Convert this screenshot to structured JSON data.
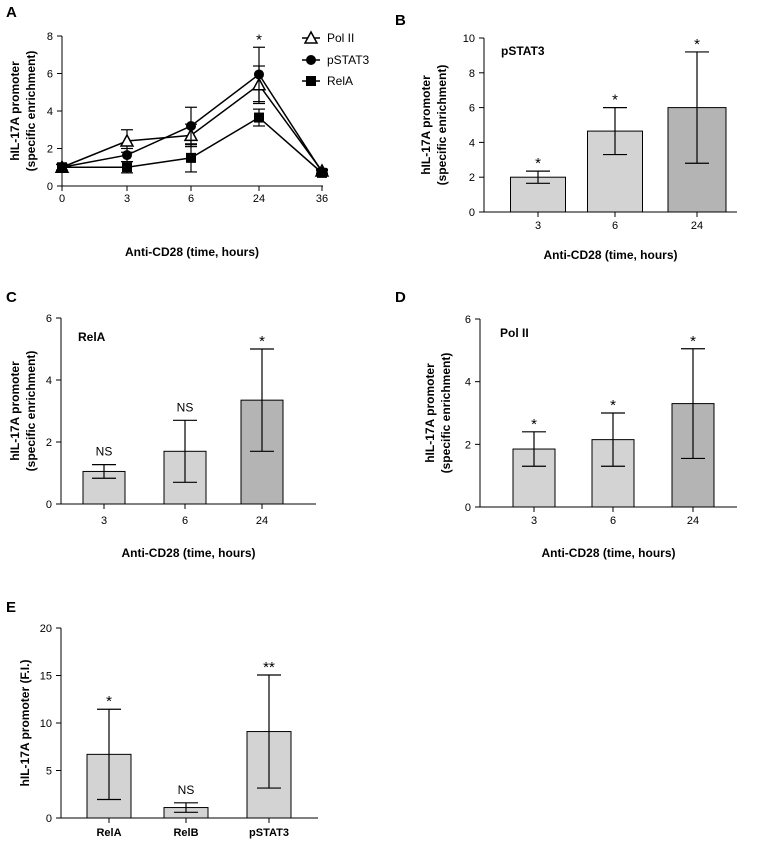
{
  "colors": {
    "bar_light": "#d3d3d3",
    "bar_dark": "#b4b4b4",
    "line": "#000000"
  },
  "chart_data": [
    {
      "panel": "A",
      "type": "line",
      "xlabel": "Anti-CD28 (time, hours)",
      "ylabel_lines": [
        "hIL-17A promoter",
        "(specific enrichment)"
      ],
      "x": [
        0,
        3,
        6,
        24,
        36
      ],
      "x_tick_labels": [
        "0",
        "3",
        "6",
        "24",
        "36"
      ],
      "ylim": [
        0,
        8
      ],
      "y_ticks": [
        0,
        2,
        4,
        6,
        8
      ],
      "series": [
        {
          "name": "Pol II",
          "marker": "triangle-open",
          "values": [
            1.0,
            2.4,
            2.7,
            5.4,
            0.8
          ],
          "err": [
            0.15,
            0.6,
            0.6,
            1.0,
            0.1
          ]
        },
        {
          "name": "pSTAT3",
          "marker": "circle-filled",
          "values": [
            1.0,
            1.65,
            3.2,
            5.95,
            0.75
          ],
          "err": [
            0.15,
            0.35,
            1.0,
            1.45,
            0.1
          ]
        },
        {
          "name": "RelA",
          "marker": "square-filled",
          "values": [
            1.0,
            1.0,
            1.5,
            3.65,
            0.7
          ],
          "err": [
            0.15,
            0.3,
            0.75,
            0.45,
            0.1
          ]
        }
      ],
      "annotations": [
        {
          "x": 24,
          "text": "*"
        }
      ]
    },
    {
      "panel": "B",
      "type": "bar",
      "inset_title": "pSTAT3",
      "xlabel": "Anti-CD28 (time, hours)",
      "ylabel_lines": [
        "hIL-17A promoter",
        "(specific enrichment)"
      ],
      "categories": [
        "3",
        "6",
        "24"
      ],
      "values": [
        2.0,
        4.65,
        6.0
      ],
      "err": [
        0.35,
        1.35,
        3.2
      ],
      "sig": [
        "*",
        "*",
        "*"
      ],
      "ylim": [
        0,
        10
      ],
      "y_ticks": [
        0,
        2,
        4,
        6,
        8,
        10
      ]
    },
    {
      "panel": "C",
      "type": "bar",
      "inset_title": "RelA",
      "xlabel": "Anti-CD28 (time, hours)",
      "ylabel_lines": [
        "hIL-17A promoter",
        "(specific enrichment)"
      ],
      "categories": [
        "3",
        "6",
        "24"
      ],
      "values": [
        1.05,
        1.7,
        3.35
      ],
      "err": [
        0.22,
        1.0,
        1.65
      ],
      "sig": [
        "NS",
        "NS",
        "*"
      ],
      "ylim": [
        0,
        6
      ],
      "y_ticks": [
        0,
        2,
        4,
        6
      ]
    },
    {
      "panel": "D",
      "type": "bar",
      "inset_title": "Pol II",
      "xlabel": "Anti-CD28 (time, hours)",
      "ylabel_lines": [
        "hIL-17A promoter",
        "(specific enrichment)"
      ],
      "categories": [
        "3",
        "6",
        "24"
      ],
      "values": [
        1.85,
        2.15,
        3.3
      ],
      "err": [
        0.55,
        0.85,
        1.75
      ],
      "sig": [
        "*",
        "*",
        "*"
      ],
      "ylim": [
        0,
        6
      ],
      "y_ticks": [
        0,
        2,
        4,
        6
      ]
    },
    {
      "panel": "E",
      "type": "bar",
      "inset_title": "",
      "xlabel": "",
      "ylabel_lines": [
        "hIL-17A promoter (F.I.)"
      ],
      "categories": [
        "RelA",
        "RelB",
        "pSTAT3"
      ],
      "values": [
        6.7,
        1.1,
        9.1
      ],
      "err": [
        4.75,
        0.5,
        5.95
      ],
      "sig": [
        "*",
        "NS",
        "**"
      ],
      "ylim": [
        0,
        20
      ],
      "y_ticks": [
        0,
        5,
        10,
        15,
        20
      ]
    }
  ]
}
